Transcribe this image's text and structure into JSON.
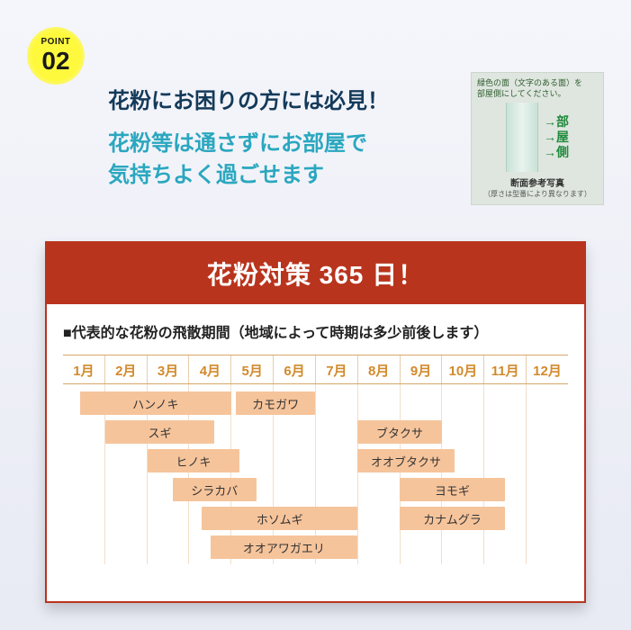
{
  "badge": {
    "label": "POINT",
    "number": "02"
  },
  "headline1": "花粉にお困りの方には必見！",
  "headline2": "花粉等は通さずにお部屋で\n気持ちよく過ごせます",
  "xsection": {
    "top_line": "緑色の面（文字のある面）を\n部屋側にしてください。",
    "side_chars": [
      "部",
      "屋",
      "側"
    ],
    "caption": "断面参考写真",
    "caption_small": "（厚さは型番により異なります）"
  },
  "card": {
    "title": "花粉対策 365 日！",
    "subhead": "■代表的な花粉の飛散期間（地域によって時期は多少前後します）",
    "months": [
      "1月",
      "2月",
      "3月",
      "4月",
      "5月",
      "6月",
      "7月",
      "8月",
      "9月",
      "10月",
      "11月",
      "12月"
    ],
    "bar_color": "#f6c49b",
    "bar_text_color": "#333333",
    "month_text_color": "#d28a2c",
    "month_border_color": "#d6a869",
    "grid_color": "#f0e0c8",
    "rows": [
      [
        {
          "label": "ハンノキ",
          "start": 1.4,
          "end": 5.0
        },
        {
          "label": "カモガワ",
          "start": 5.1,
          "end": 7.0
        }
      ],
      [
        {
          "label": "スギ",
          "start": 2.0,
          "end": 4.6
        },
        {
          "label": "ブタクサ",
          "start": 8.0,
          "end": 10.0
        }
      ],
      [
        {
          "label": "ヒノキ",
          "start": 3.0,
          "end": 5.2
        },
        {
          "label": "オオブタクサ",
          "start": 8.0,
          "end": 10.3
        }
      ],
      [
        {
          "label": "シラカバ",
          "start": 3.6,
          "end": 5.6
        },
        {
          "label": "ヨモギ",
          "start": 9.0,
          "end": 11.5
        }
      ],
      [
        {
          "label": "ホソムギ",
          "start": 4.3,
          "end": 8.0
        },
        {
          "label": "カナムグラ",
          "start": 9.0,
          "end": 11.5
        }
      ],
      [
        {
          "label": "オオアワガエリ",
          "start": 4.5,
          "end": 8.0
        }
      ]
    ]
  },
  "colors": {
    "headline1": "#143a5a",
    "headline2": "#2aa7bf",
    "card_accent": "#b9341d",
    "bg_top": "#f5f6fb",
    "bg_bottom": "#e8eaf4",
    "badge": "#fff93e"
  }
}
